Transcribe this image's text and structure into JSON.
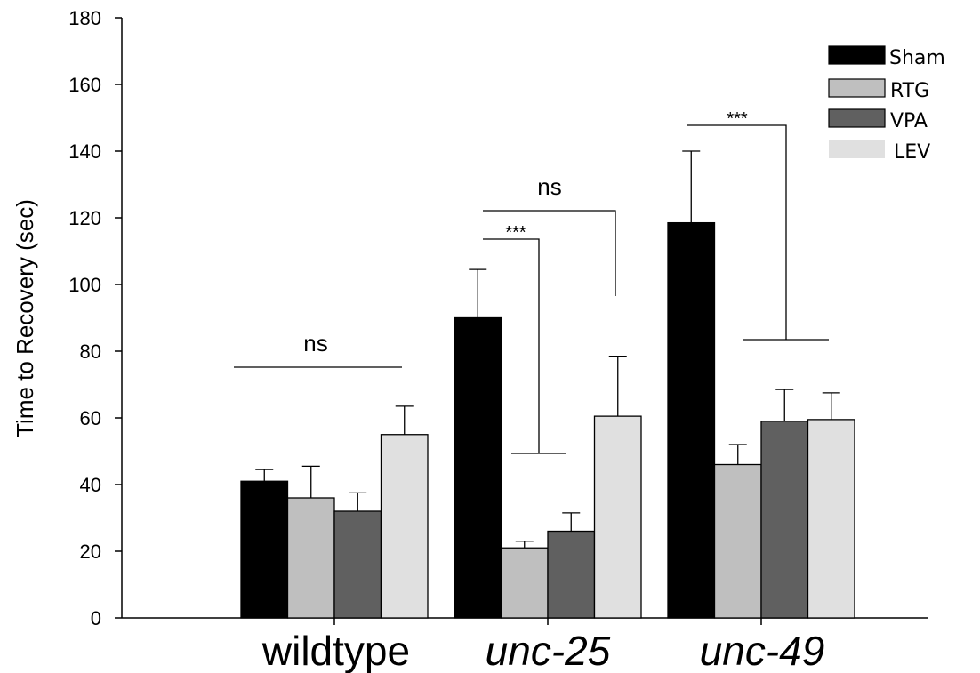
{
  "chart_data": {
    "type": "bar",
    "title": "",
    "xlabel": "",
    "ylabel": "Time to Recovery (sec)",
    "ylim": [
      0,
      180
    ],
    "yticks": [
      0,
      20,
      40,
      60,
      80,
      100,
      120,
      140,
      160,
      180
    ],
    "grid": false,
    "legend_position": "top-right",
    "categories": [
      "wildtype",
      "unc-25",
      "unc-49"
    ],
    "category_italic": [
      false,
      true,
      true
    ],
    "series": [
      {
        "name": "Sham",
        "color": "#000000",
        "values": [
          41,
          90,
          118.5
        ],
        "errors": [
          3.5,
          14.5,
          21.5
        ]
      },
      {
        "name": "RTG",
        "color": "#bfbfbf",
        "values": [
          36,
          21,
          46
        ],
        "errors": [
          9.5,
          2,
          6
        ]
      },
      {
        "name": "VPA",
        "color": "#606060",
        "values": [
          32,
          26,
          59
        ],
        "errors": [
          5.5,
          5.5,
          9.5
        ]
      },
      {
        "name": "LEV",
        "color": "#e0e0e0",
        "values": [
          55,
          60.5,
          59.5
        ],
        "errors": [
          8.5,
          18,
          8
        ]
      }
    ],
    "annotations": [
      {
        "text": "ns",
        "category": 0,
        "size": "large",
        "y": 75
      },
      {
        "text": "ns",
        "category": 1,
        "size": "large",
        "y": 122
      },
      {
        "text": "***",
        "category": 1,
        "size": "small",
        "y": 114
      },
      {
        "text": "***",
        "category": 2,
        "size": "small",
        "y": 147
      }
    ]
  }
}
